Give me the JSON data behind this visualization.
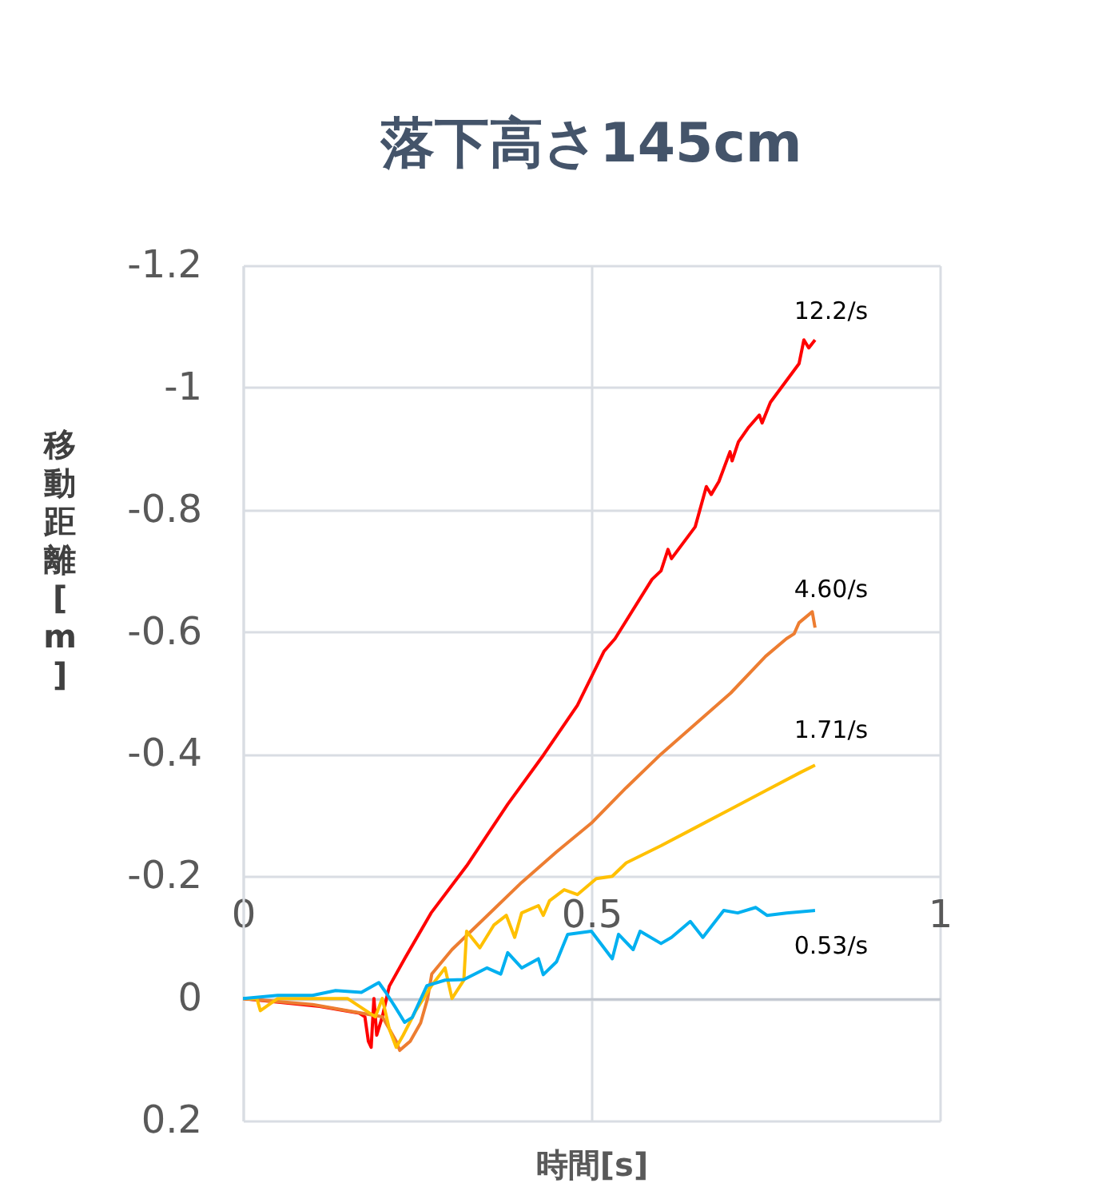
{
  "chart_data": {
    "type": "line",
    "title": "落下高さ145cm",
    "xlabel": "時間[s]",
    "ylabel": "移動距離[m]",
    "xlim": [
      0,
      1
    ],
    "xticks": [
      0,
      0.5,
      1
    ],
    "ylim": [
      0.2,
      -1.2
    ],
    "yticks": [
      0.2,
      0,
      -0.2,
      -0.4,
      -0.6,
      -0.8,
      -1,
      -1.2
    ],
    "grid": true,
    "series": [
      {
        "name": "12.2/s",
        "color": "#ff0000",
        "x": [
          0,
          0.11,
          0.167,
          0.175,
          0.18,
          0.184,
          0.188,
          0.192,
          0.2,
          0.21,
          0.232,
          0.27,
          0.321,
          0.38,
          0.431,
          0.48,
          0.518,
          0.534,
          0.587,
          0.6,
          0.61,
          0.615,
          0.649,
          0.665,
          0.672,
          0.683,
          0.699,
          0.702,
          0.711,
          0.725,
          0.741,
          0.745,
          0.757,
          0.798,
          0.805,
          0.812,
          0.821
        ],
        "values": [
          0,
          0.013,
          0.024,
          0.03,
          0.07,
          0.08,
          0.0,
          0.06,
          0.03,
          -0.02,
          -0.065,
          -0.14,
          -0.217,
          -0.318,
          -0.398,
          -0.48,
          -0.568,
          -0.589,
          -0.686,
          -0.7,
          -0.735,
          -0.72,
          -0.772,
          -0.838,
          -0.825,
          -0.846,
          -0.895,
          -0.88,
          -0.911,
          -0.934,
          -0.955,
          -0.942,
          -0.976,
          -1.039,
          -1.078,
          -1.065,
          -1.078
        ]
      },
      {
        "name": "4.60/s",
        "color": "#ed7d31",
        "x": [
          0,
          0.1,
          0.2,
          0.21,
          0.22,
          0.225,
          0.24,
          0.255,
          0.265,
          0.271,
          0.3,
          0.35,
          0.4,
          0.45,
          0.5,
          0.55,
          0.6,
          0.65,
          0.7,
          0.75,
          0.78,
          0.791,
          0.798,
          0.817,
          0.821
        ],
        "values": [
          0,
          0.01,
          0.03,
          0.05,
          0.07,
          0.085,
          0.07,
          0.04,
          0.0,
          -0.04,
          -0.08,
          -0.135,
          -0.19,
          -0.24,
          -0.287,
          -0.345,
          -0.4,
          -0.45,
          -0.5,
          -0.56,
          -0.589,
          -0.597,
          -0.615,
          -0.633,
          -0.607
        ]
      },
      {
        "name": "1.71/s",
        "color": "#ffc000",
        "x": [
          0,
          0.02,
          0.025,
          0.05,
          0.1,
          0.15,
          0.19,
          0.2,
          0.21,
          0.22,
          0.23,
          0.248,
          0.27,
          0.29,
          0.3,
          0.317,
          0.321,
          0.34,
          0.36,
          0.378,
          0.39,
          0.4,
          0.424,
          0.431,
          0.44,
          0.461,
          0.48,
          0.507,
          0.53,
          0.55,
          0.6,
          0.65,
          0.7,
          0.75,
          0.8,
          0.821
        ],
        "values": [
          0,
          0.0,
          0.02,
          0.0,
          0.0,
          0.0,
          0.03,
          0.0,
          0.05,
          0.08,
          0.06,
          0.02,
          -0.02,
          -0.05,
          0.0,
          -0.03,
          -0.11,
          -0.083,
          -0.12,
          -0.136,
          -0.1,
          -0.14,
          -0.152,
          -0.136,
          -0.16,
          -0.178,
          -0.17,
          -0.196,
          -0.2,
          -0.222,
          -0.25,
          -0.28,
          -0.31,
          -0.34,
          -0.37,
          -0.382
        ]
      },
      {
        "name": "0.53/s",
        "color": "#00b0f0",
        "x": [
          0,
          0.05,
          0.1,
          0.133,
          0.17,
          0.195,
          0.205,
          0.218,
          0.232,
          0.243,
          0.264,
          0.29,
          0.317,
          0.35,
          0.37,
          0.38,
          0.4,
          0.424,
          0.431,
          0.45,
          0.466,
          0.5,
          0.53,
          0.539,
          0.56,
          0.57,
          0.6,
          0.615,
          0.642,
          0.66,
          0.69,
          0.71,
          0.736,
          0.752,
          0.78,
          0.821
        ],
        "values": [
          0,
          -0.005,
          -0.005,
          -0.013,
          -0.01,
          -0.026,
          -0.01,
          0.013,
          0.039,
          0.031,
          -0.021,
          -0.03,
          -0.031,
          -0.05,
          -0.04,
          -0.075,
          -0.05,
          -0.065,
          -0.039,
          -0.06,
          -0.105,
          -0.11,
          -0.065,
          -0.105,
          -0.08,
          -0.11,
          -0.09,
          -0.1,
          -0.126,
          -0.1,
          -0.144,
          -0.14,
          -0.149,
          -0.136,
          -0.14,
          -0.144
        ]
      }
    ]
  }
}
